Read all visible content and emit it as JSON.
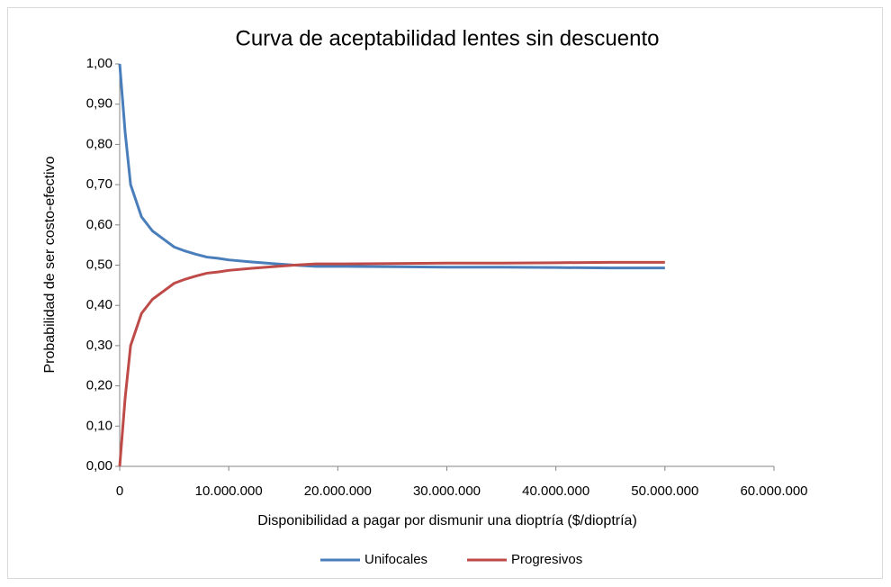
{
  "chart_data": {
    "type": "line",
    "title": "Curva de aceptabilidad lentes sin descuento",
    "x_label": "Disponibilidad a pagar por dismunir una dioptría ($/dioptría)",
    "y_label": "Probabilidad de ser costo-efectivo",
    "x": [
      0,
      500000,
      1000000,
      1500000,
      2000000,
      3000000,
      4000000,
      5000000,
      6000000,
      7000000,
      8000000,
      9000000,
      10000000,
      12000000,
      14000000,
      16000000,
      18000000,
      20000000,
      25000000,
      30000000,
      35000000,
      40000000,
      45000000,
      50000000
    ],
    "series": [
      {
        "name": "Unifocales",
        "color": "#4a7ebb",
        "values": [
          1.0,
          0.83,
          0.7,
          0.66,
          0.62,
          0.585,
          0.565,
          0.545,
          0.535,
          0.527,
          0.52,
          0.517,
          0.513,
          0.508,
          0.504,
          0.5,
          0.497,
          0.497,
          0.496,
          0.495,
          0.495,
          0.494,
          0.493,
          0.493
        ]
      },
      {
        "name": "Progresivos",
        "color": "#be4b48",
        "values": [
          0.0,
          0.17,
          0.3,
          0.34,
          0.38,
          0.415,
          0.435,
          0.455,
          0.465,
          0.473,
          0.48,
          0.483,
          0.487,
          0.492,
          0.496,
          0.5,
          0.503,
          0.503,
          0.504,
          0.505,
          0.505,
          0.506,
          0.507,
          0.507
        ]
      }
    ],
    "xlim": [
      0,
      60000000
    ],
    "xticks": [
      0,
      {
        "value": 10000000,
        "label": "10.000.000"
      },
      {
        "value": 20000000,
        "label": "20.000.000"
      },
      {
        "value": 30000000,
        "label": "30.000.000"
      },
      {
        "value": 40000000,
        "label": "40.000.000"
      },
      {
        "value": 50000000,
        "label": "50.000.000"
      },
      {
        "value": 60000000,
        "label": "60.000.000"
      }
    ],
    "ylim": [
      0,
      1
    ],
    "yticks": [
      {
        "value": 0,
        "label": "0,00"
      },
      {
        "value": 0.1,
        "label": "0,10"
      },
      {
        "value": 0.2,
        "label": "0,20"
      },
      {
        "value": 0.3,
        "label": "0,30"
      },
      {
        "value": 0.4,
        "label": "0,40"
      },
      {
        "value": 0.5,
        "label": "0,50"
      },
      {
        "value": 0.6,
        "label": "0,60"
      },
      {
        "value": 0.7,
        "label": "0,70"
      },
      {
        "value": 0.8,
        "label": "0,80"
      },
      {
        "value": 0.9,
        "label": "0,90"
      },
      {
        "value": 1,
        "label": "1,00"
      }
    ],
    "legend": "bottom"
  }
}
